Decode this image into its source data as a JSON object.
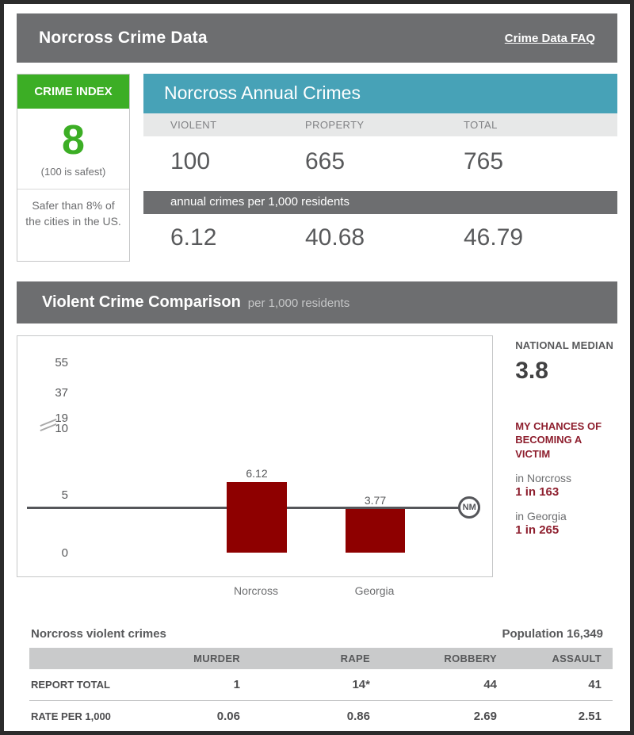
{
  "window": {
    "title": "Norcross Crime Data",
    "faq_link": "Crime Data FAQ"
  },
  "crime_index": {
    "heading": "CRIME INDEX",
    "score": "8",
    "scale_note": "(100 is safest)",
    "comparison": "Safer than 8% of the cities in the US."
  },
  "annual_crimes": {
    "title": "Norcross Annual Crimes",
    "columns": [
      "VIOLENT",
      "PROPERTY",
      "TOTAL"
    ],
    "counts": [
      "100",
      "665",
      "765"
    ],
    "per_1000_label": "annual crimes per 1,000 residents",
    "rates": [
      "6.12",
      "40.68",
      "46.79"
    ]
  },
  "comparison_section": {
    "title": "Violent Crime Comparison",
    "subtitle": "per 1,000 residents"
  },
  "chart_data": {
    "type": "bar",
    "title": "Violent Crime Comparison per 1,000 residents",
    "categories": [
      "Norcross",
      "Georgia"
    ],
    "values": [
      6.12,
      3.77
    ],
    "value_labels": [
      "6.12",
      "3.77"
    ],
    "y_ticks": [
      0,
      5,
      10,
      19,
      37,
      55
    ],
    "ylim": [
      0,
      55
    ],
    "axis_break_between": [
      5,
      10
    ],
    "reference_line": {
      "label": "NM",
      "value": 3.8
    },
    "bar_color": "#8e0000",
    "grid": false,
    "legend": "none"
  },
  "stats_panel": {
    "national_median_label": "NATIONAL MEDIAN",
    "national_median_value": "3.8",
    "chances_heading": "MY CHANCES OF BECOMING A VICTIM",
    "entries": [
      {
        "label": "in Norcross",
        "value": "1 in 163"
      },
      {
        "label": "in Georgia",
        "value": "1 in 265"
      }
    ]
  },
  "violent_table": {
    "caption": "Norcross violent crimes",
    "population": "Population 16,349",
    "columns": [
      "MURDER",
      "RAPE",
      "ROBBERY",
      "ASSAULT"
    ],
    "rows": [
      {
        "label": "REPORT TOTAL",
        "values": [
          "1",
          "14*",
          "44",
          "41"
        ]
      },
      {
        "label": "RATE PER 1,000",
        "values": [
          "0.06",
          "0.86",
          "2.69",
          "2.51"
        ]
      }
    ]
  }
}
